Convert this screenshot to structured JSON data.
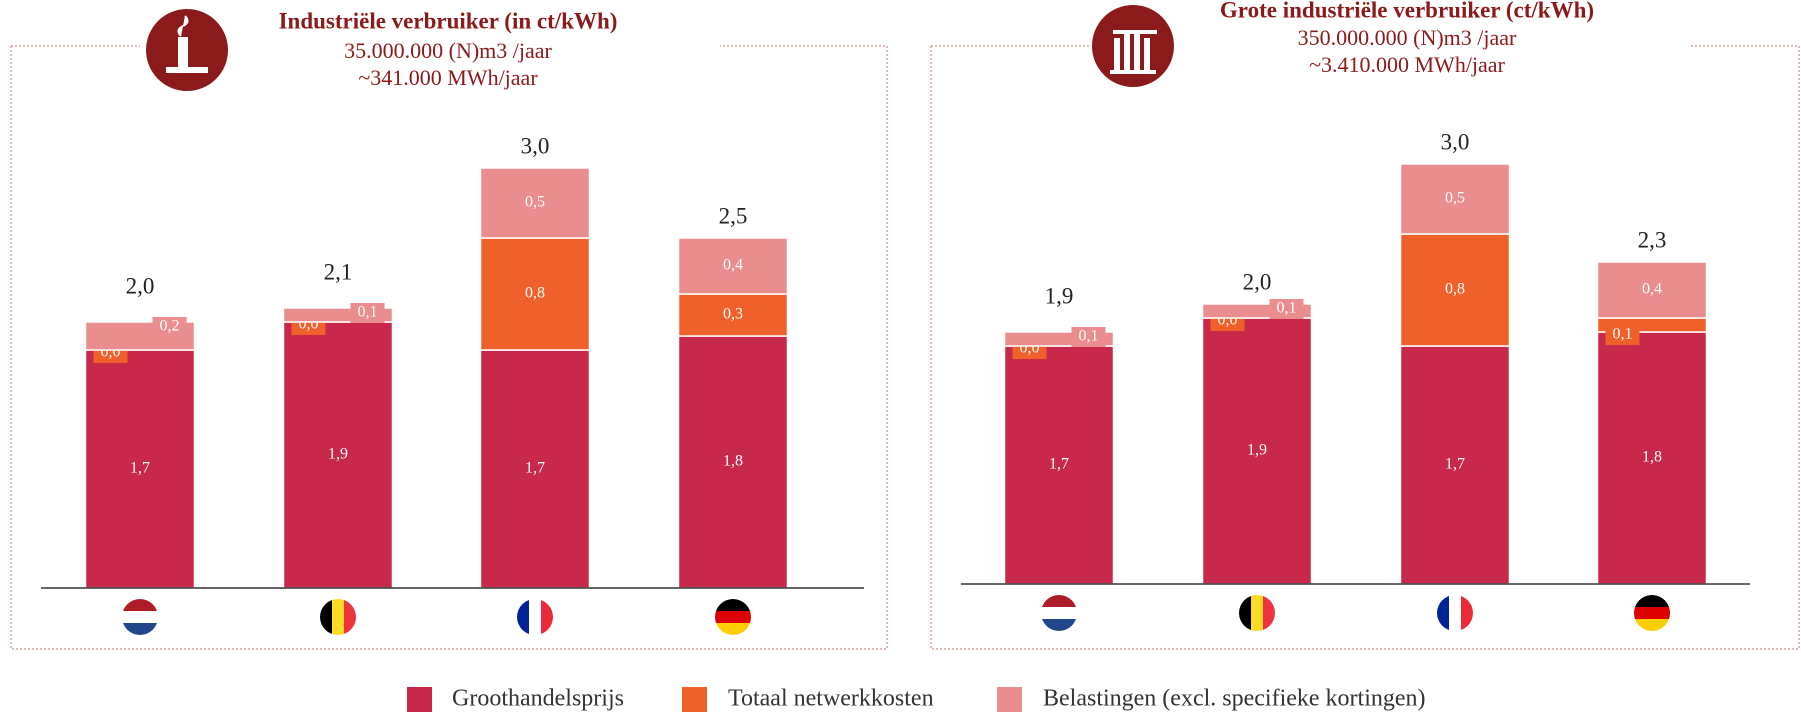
{
  "chart_data": [
    {
      "type": "stacked_bar",
      "title": "Industriële verbruiker (in ct/kWh)",
      "subtitle": [
        "35.000.000 (N)m3 /jaar",
        "~341.000 MWh/jaar"
      ],
      "categories": [
        null,
        null,
        null,
        null
      ],
      "ylim": [
        0,
        3.5
      ],
      "series": [
        {
          "name": "Groothandelsprijs",
          "color": "#c8294a",
          "values": [
            1.7,
            1.9,
            1.7,
            1.8
          ],
          "value_labels": [
            "1,7",
            "1,9",
            "1,7",
            "1,8"
          ]
        },
        {
          "name": "Totaal netwerkkosten",
          "color": "#f0602a",
          "values": [
            0.0,
            0.0,
            0.8,
            0.3
          ],
          "value_labels": [
            "0,0",
            "0,0",
            "0,8",
            "0,3"
          ]
        },
        {
          "name": "Belastingen (excl. specifieke kortingen)",
          "color": "#e98d8f",
          "values": [
            0.2,
            0.1,
            0.5,
            0.4
          ],
          "value_labels": [
            "0,2",
            "0,1",
            "0,5",
            "0,4"
          ]
        }
      ],
      "totals": [
        2.0,
        2.1,
        3.0,
        2.5
      ],
      "total_labels": [
        "2,0",
        "2,1",
        "3,0",
        "2,5"
      ]
    },
    {
      "type": "stacked_bar",
      "title": "Grote industriële verbruiker (ct/kWh)",
      "subtitle": [
        "350.000.000 (N)m3 /jaar",
        "~3.410.000 MWh/jaar"
      ],
      "categories": [
        null,
        null,
        null,
        null
      ],
      "ylim": [
        0,
        3.5
      ],
      "series": [
        {
          "name": "Groothandelsprijs",
          "color": "#c8294a",
          "values": [
            1.7,
            1.9,
            1.7,
            1.8
          ],
          "value_labels": [
            "1,7",
            "1,9",
            "1,7",
            "1,8"
          ]
        },
        {
          "name": "Totaal netwerkkosten",
          "color": "#f0602a",
          "values": [
            0.0,
            0.0,
            0.8,
            0.1
          ],
          "value_labels": [
            "0,0",
            "0,0",
            "0,8",
            "0,1"
          ]
        },
        {
          "name": "Belastingen (excl. specifieke kortingen)",
          "color": "#e98d8f",
          "values": [
            0.1,
            0.1,
            0.5,
            0.4
          ],
          "value_labels": [
            "0,1",
            "0,1",
            "0,5",
            "0,4"
          ]
        }
      ],
      "totals": [
        1.9,
        2.0,
        3.0,
        2.3
      ],
      "total_labels": [
        "1,9",
        "2,0",
        "3,0",
        "2,3"
      ]
    }
  ]
}
